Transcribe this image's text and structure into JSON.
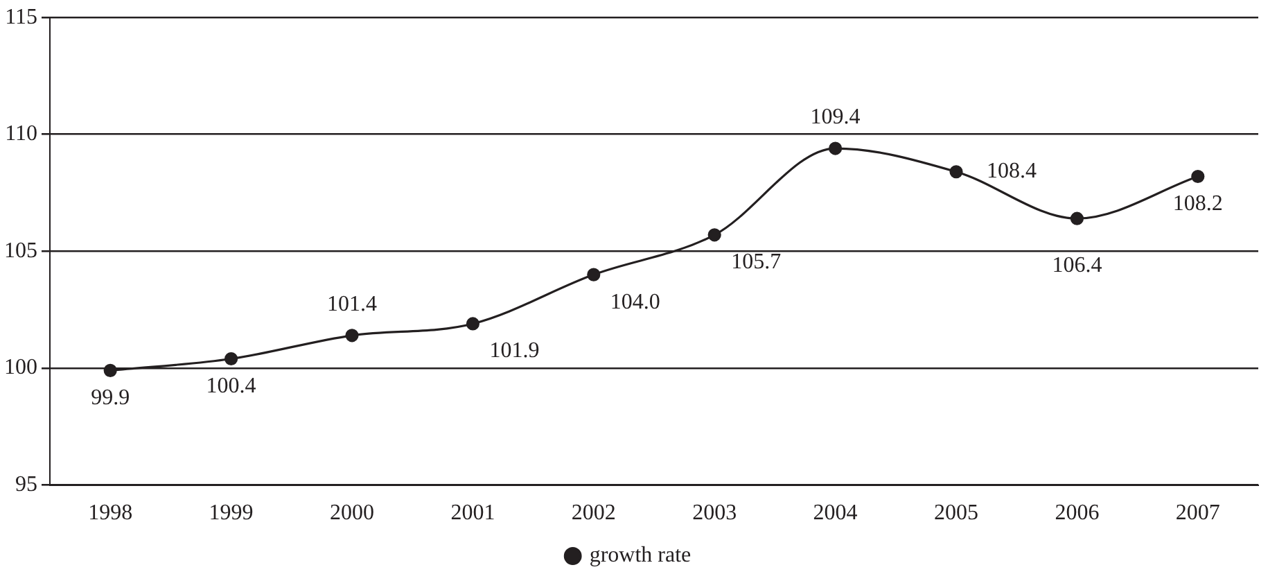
{
  "chart_data": {
    "type": "line",
    "categories": [
      "1998",
      "1999",
      "2000",
      "2001",
      "2002",
      "2003",
      "2004",
      "2005",
      "2006",
      "2007"
    ],
    "series": [
      {
        "name": "growth rate",
        "color": "#231f20",
        "values": [
          99.9,
          100.4,
          101.4,
          101.9,
          104.0,
          105.7,
          109.4,
          108.4,
          106.4,
          108.2
        ],
        "value_labels": [
          "99.9",
          "100.4",
          "101.4",
          "101.9",
          "104.0",
          "105.7",
          "109.4",
          "108.4",
          "106.4",
          "108.2"
        ]
      }
    ],
    "ylim": [
      95,
      115
    ],
    "yticks": [
      95,
      100,
      105,
      110,
      115
    ],
    "grid": "y",
    "legend": "bottom",
    "marker": "circle",
    "line_style": "solid"
  }
}
